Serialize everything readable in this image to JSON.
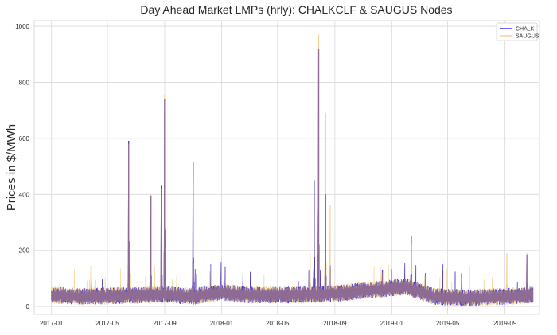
{
  "chart_data": {
    "type": "line",
    "title": "Day Ahead Market LMPs (hrly):  CHALKCLF & SAUGUS Nodes",
    "xlabel": "",
    "ylabel": "Prices in $/MWh",
    "xlim": [
      "2016-11-25",
      "2019-11-14"
    ],
    "ylim": [
      -28,
      1020
    ],
    "x_ticks": [
      "2017-01",
      "2017-05",
      "2017-09",
      "2018-01",
      "2018-05",
      "2018-09",
      "2019-01",
      "2019-05",
      "2019-09"
    ],
    "y_ticks": [
      0,
      200,
      400,
      600,
      800,
      1000
    ],
    "grid": true,
    "legend_position": "top-right",
    "series": [
      {
        "name": "CHALK",
        "color": "#0000ff",
        "baseline": [
          [
            "2017-01-01",
            40
          ],
          [
            "2017-03-01",
            35
          ],
          [
            "2017-06-01",
            38
          ],
          [
            "2017-09-01",
            42
          ],
          [
            "2017-11-01",
            35
          ],
          [
            "2018-01-01",
            50
          ],
          [
            "2018-03-01",
            40
          ],
          [
            "2018-06-01",
            40
          ],
          [
            "2018-09-01",
            45
          ],
          [
            "2018-12-01",
            60
          ],
          [
            "2019-02-01",
            70
          ],
          [
            "2019-04-01",
            35
          ],
          [
            "2019-06-01",
            30
          ],
          [
            "2019-09-01",
            35
          ],
          [
            "2019-10-31",
            40
          ]
        ],
        "spikes": [
          [
            "2017-06-16",
            590
          ],
          [
            "2017-08-02",
            395
          ],
          [
            "2017-08-25",
            430
          ],
          [
            "2017-09-01",
            740
          ],
          [
            "2017-11-01",
            515
          ],
          [
            "2018-07-19",
            450
          ],
          [
            "2018-07-28",
            918
          ],
          [
            "2018-08-12",
            400
          ],
          [
            "2018-12-12",
            130
          ],
          [
            "2019-02-12",
            250
          ],
          [
            "2019-10-18",
            185
          ]
        ]
      },
      {
        "name": "SAUGUS",
        "color": "#f0c87a",
        "baseline": [
          [
            "2017-01-01",
            40
          ],
          [
            "2017-03-01",
            35
          ],
          [
            "2017-06-01",
            38
          ],
          [
            "2017-09-01",
            42
          ],
          [
            "2017-11-01",
            35
          ],
          [
            "2018-01-01",
            50
          ],
          [
            "2018-03-01",
            40
          ],
          [
            "2018-06-01",
            40
          ],
          [
            "2018-09-01",
            45
          ],
          [
            "2018-12-01",
            60
          ],
          [
            "2019-02-01",
            70
          ],
          [
            "2019-04-01",
            35
          ],
          [
            "2019-06-01",
            30
          ],
          [
            "2019-09-01",
            35
          ],
          [
            "2019-10-31",
            40
          ]
        ],
        "spikes": [
          [
            "2017-06-16",
            580
          ],
          [
            "2017-08-02",
            400
          ],
          [
            "2017-08-25",
            420
          ],
          [
            "2017-09-01",
            755
          ],
          [
            "2017-11-01",
            440
          ],
          [
            "2018-07-10",
            190
          ],
          [
            "2018-07-28",
            970
          ],
          [
            "2018-08-12",
            690
          ],
          [
            "2018-08-22",
            360
          ],
          [
            "2018-12-12",
            120
          ],
          [
            "2019-02-12",
            220
          ],
          [
            "2019-09-05",
            190
          ],
          [
            "2019-10-18",
            190
          ]
        ]
      }
    ],
    "overlap_color": "#7d5a96"
  }
}
